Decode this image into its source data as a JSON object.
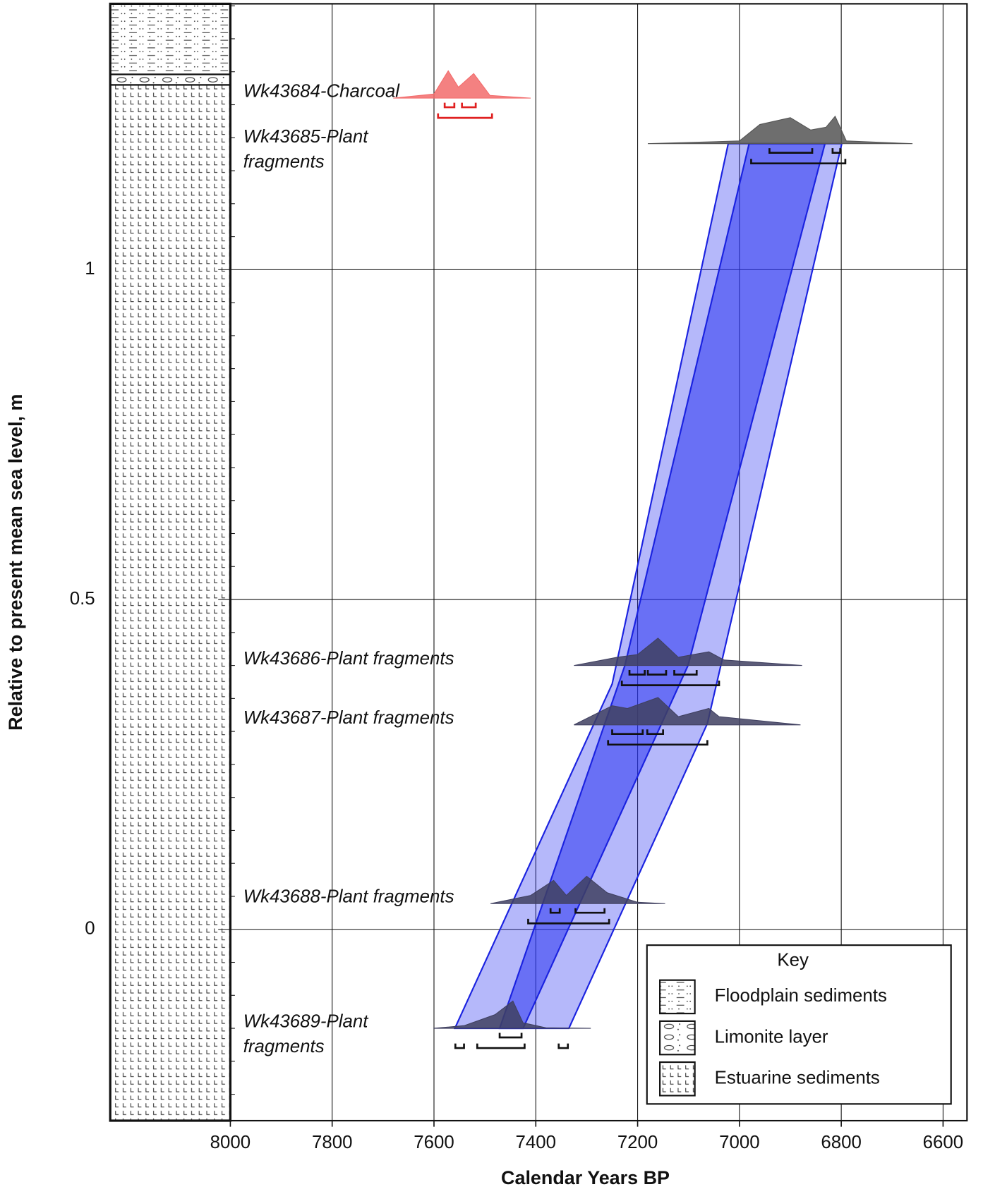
{
  "chart_data": {
    "type": "sea-level",
    "xlabel": "Calendar Years BP",
    "ylabel": "Relative to present mean sea level, m",
    "xlim": [
      8000,
      6553
    ],
    "ylim": [
      -0.29,
      1.403
    ],
    "xticks": [
      8000,
      7800,
      7600,
      7400,
      7200,
      7000,
      6800,
      6600
    ],
    "yticks": [
      0,
      0.5,
      1
    ],
    "yminorticks": [
      -0.25,
      -0.2,
      -0.15,
      -0.1,
      -0.05,
      0.05,
      0.1,
      0.15,
      0.2,
      0.25,
      0.3,
      0.35,
      0.4,
      0.45,
      0.55,
      0.6,
      0.65,
      0.7,
      0.75,
      0.8,
      0.85,
      0.9,
      0.95,
      1.05,
      1.1,
      1.15,
      1.2,
      1.25,
      1.3,
      1.35,
      1.4
    ],
    "grid": true,
    "bands": [
      {
        "color": "#2a34f0",
        "opacity": 0.35,
        "years": [
          7022,
          6799,
          7063,
          7335,
          7559,
          7250
        ],
        "depths": [
          1.191,
          1.191,
          0.312,
          -0.15,
          -0.15,
          0.372
        ]
      },
      {
        "color": "#2a34f0",
        "opacity": 0.55,
        "years": [
          6981,
          6832,
          7101,
          7425,
          7471,
          7225
        ],
        "depths": [
          1.191,
          1.191,
          0.4,
          -0.15,
          -0.15,
          0.4
        ]
      }
    ],
    "samples": [
      {
        "label": [
          "Wk43684-Charcoal"
        ],
        "depth": 1.26,
        "color": "#f26b6b",
        "density_x": [
          7680,
          7600,
          7572,
          7552,
          7522,
          7490,
          7410
        ],
        "density_y": [
          0,
          0.15,
          1,
          0.4,
          0.9,
          0.1,
          0
        ],
        "sigma1": [
          [
            7579,
            7560
          ],
          [
            7545,
            7518
          ]
        ],
        "sigma2": [
          [
            7592,
            7486
          ]
        ]
      },
      {
        "label": [
          "Wk43685-Plant",
          "fragments"
        ],
        "depth": 1.191,
        "color": "#555555",
        "density_x": [
          7180,
          7000,
          6960,
          6900,
          6860,
          6830,
          6812,
          6790,
          6660
        ],
        "density_y": [
          0,
          0.1,
          0.7,
          0.95,
          0.5,
          0.6,
          1,
          0.1,
          0
        ],
        "sigma1": [
          [
            6941,
            6857
          ],
          [
            6817,
            6802
          ]
        ],
        "sigma2": [
          [
            6977,
            6792
          ]
        ]
      },
      {
        "label": [
          "Wk43686-Plant fragments"
        ],
        "depth": 0.4,
        "color": "#404060",
        "density_x": [
          7325,
          7240,
          7200,
          7160,
          7120,
          7060,
          7030,
          6877
        ],
        "density_y": [
          0,
          0.3,
          0.4,
          1,
          0.3,
          0.5,
          0.2,
          0
        ],
        "sigma1": [
          [
            7216,
            7186
          ],
          [
            7180,
            7144
          ],
          [
            7128,
            7084
          ]
        ],
        "sigma2": [
          [
            7231,
            7040
          ]
        ]
      },
      {
        "label": [
          "Wk43687-Plant fragments"
        ],
        "depth": 0.31,
        "color": "#404060",
        "density_x": [
          7325,
          7250,
          7220,
          7160,
          7120,
          7060,
          7040,
          6880
        ],
        "density_y": [
          0,
          0.7,
          0.6,
          1,
          0.3,
          0.6,
          0.3,
          0
        ],
        "sigma1": [
          [
            7250,
            7190
          ],
          [
            7181,
            7150
          ]
        ],
        "sigma2": [
          [
            7258,
            7063
          ]
        ]
      },
      {
        "label": [
          "Wk43688-Plant fragments"
        ],
        "depth": 0.039,
        "color": "#404060",
        "density_x": [
          7489,
          7410,
          7365,
          7340,
          7300,
          7260,
          7200,
          7146
        ],
        "density_y": [
          0,
          0.3,
          0.85,
          0.3,
          1,
          0.4,
          0.05,
          0
        ],
        "sigma1": [
          [
            7371,
            7353
          ],
          [
            7322,
            7265
          ]
        ],
        "sigma2": [
          [
            7415,
            7256
          ]
        ]
      },
      {
        "label": [
          "Wk43689-Plant",
          "fragments"
        ],
        "depth": -0.15,
        "color": "#404060",
        "density_x": [
          7601,
          7540,
          7480,
          7445,
          7425,
          7380,
          7292
        ],
        "density_y": [
          0,
          0.1,
          0.5,
          1,
          0.2,
          0.02,
          0
        ],
        "sigma1": [
          [
            7471,
            7428
          ]
        ],
        "sigma2": [
          [
            7558,
            7541
          ],
          [
            7515,
            7422
          ],
          [
            7355,
            7337
          ]
        ]
      }
    ],
    "legend_title": "Key",
    "strata": [
      {
        "name": "Floodplain sediments",
        "pattern": "flood",
        "top": 1.403,
        "bottom": 1.296
      },
      {
        "name": "Limonite layer",
        "pattern": "limo",
        "top": 1.296,
        "bottom": 1.28
      },
      {
        "name": "Estuarine sediments",
        "pattern": "estu",
        "top": 1.28,
        "bottom": -0.29
      }
    ]
  }
}
